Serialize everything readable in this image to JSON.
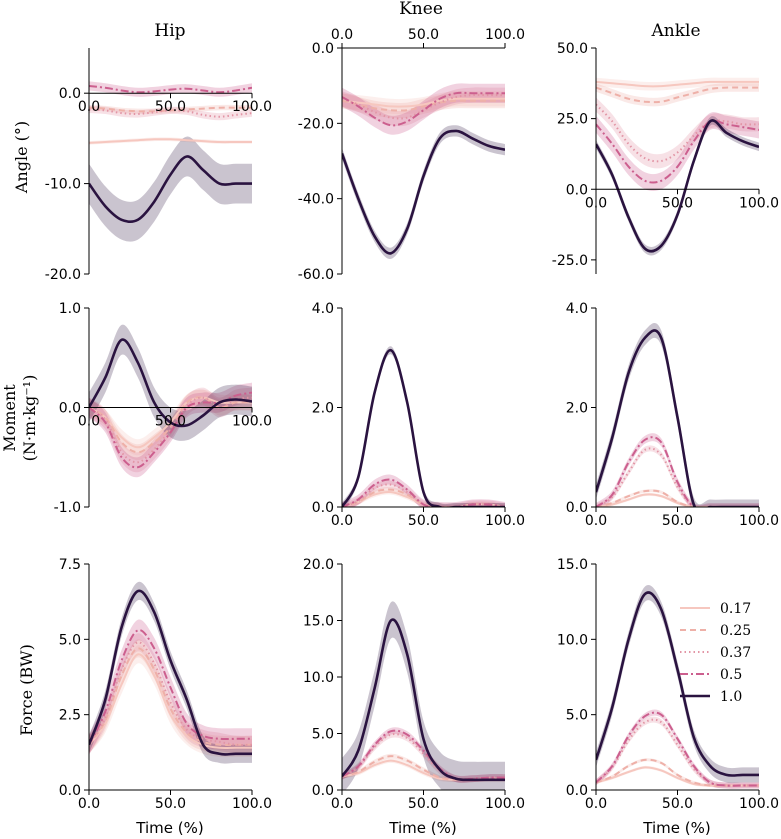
{
  "figure": {
    "col_titles": [
      "Hip",
      "Knee",
      "Ankle"
    ],
    "row_ylabels": [
      "Angle (°)",
      "Moment",
      "(N·m·kg⁻¹)",
      "Force (BW)"
    ],
    "xlabel": "Time (%)"
  },
  "legend": [
    {
      "label": "0.17",
      "color": "#f6c7bf",
      "dash": "solid"
    },
    {
      "label": "0.25",
      "color": "#eeb0a8",
      "dash": "dashed"
    },
    {
      "label": "0.37",
      "color": "#e295a5",
      "dash": "dotted"
    },
    {
      "label": "0.5",
      "color": "#cc5f8e",
      "dash": "dashdot"
    },
    {
      "label": "1.0",
      "color": "#2a1340",
      "dash": "solid"
    }
  ],
  "chart_data": [
    {
      "type": "line",
      "title": "Hip",
      "ylabel": "Angle (°)",
      "xlabel": "",
      "xlim": [
        0,
        100
      ],
      "ylim": [
        -20,
        5
      ],
      "xticks": [
        0,
        50,
        100
      ],
      "xtick_labels": [
        "0.0",
        "50.0",
        "100.0"
      ],
      "yticks": [
        0,
        -10,
        -20
      ],
      "ytick_labels": [
        "0.0",
        "-10.0",
        "-20.0"
      ],
      "x": [
        0,
        10,
        20,
        30,
        40,
        50,
        60,
        70,
        80,
        90,
        100
      ],
      "series": [
        {
          "name": "0.17",
          "values": [
            -5.5,
            -5.4,
            -5.3,
            -5.2,
            -5.1,
            -5.1,
            -5.2,
            -5.3,
            -5.4,
            -5.4,
            -5.4
          ],
          "band": 0.2
        },
        {
          "name": "0.25",
          "values": [
            -1.6,
            -1.7,
            -1.9,
            -2.0,
            -2.0,
            -1.9,
            -1.8,
            -1.7,
            -1.6,
            -1.6,
            -1.6
          ],
          "band": 0.3
        },
        {
          "name": "0.37",
          "values": [
            -1.8,
            -1.9,
            -2.2,
            -2.3,
            -2.1,
            -1.9,
            -2.0,
            -2.4,
            -2.6,
            -2.4,
            -2.2
          ],
          "band": 0.4
        },
        {
          "name": "0.5",
          "values": [
            0.8,
            0.6,
            0.3,
            0.1,
            0.2,
            0.4,
            0.5,
            0.3,
            0.1,
            0.3,
            0.6
          ],
          "band": 0.5
        },
        {
          "name": "1.0",
          "values": [
            -10.0,
            -12.5,
            -14.0,
            -14.0,
            -12.0,
            -9.0,
            -7.0,
            -8.5,
            -10.0,
            -10.0,
            -10.0
          ],
          "band": 2.2
        }
      ]
    },
    {
      "type": "line",
      "title": "Knee",
      "ylabel": "",
      "xlabel": "",
      "xlim": [
        0,
        100
      ],
      "ylim": [
        -60,
        0
      ],
      "xticks": [
        0,
        50,
        100
      ],
      "xtick_labels": [
        "0.0",
        "50.0",
        "100.0"
      ],
      "yticks": [
        0,
        -20,
        -40,
        -60
      ],
      "ytick_labels": [
        "0.0",
        "-20.0",
        "-40.0",
        "-60.0"
      ],
      "x": [
        0,
        10,
        20,
        30,
        40,
        50,
        60,
        70,
        80,
        90,
        100
      ],
      "series": [
        {
          "name": "0.17",
          "values": [
            -14,
            -14.5,
            -15,
            -15.5,
            -15.5,
            -15,
            -14,
            -13.5,
            -13.5,
            -13.5,
            -13.5
          ],
          "band": 2.0
        },
        {
          "name": "0.25",
          "values": [
            -14,
            -15,
            -16,
            -16.5,
            -16.5,
            -15.5,
            -14.5,
            -14,
            -14,
            -14,
            -14
          ],
          "band": 2.0
        },
        {
          "name": "0.37",
          "values": [
            -13.5,
            -15,
            -17,
            -18.5,
            -18.5,
            -16.5,
            -14.5,
            -13,
            -12.5,
            -12.5,
            -12.5
          ],
          "band": 2.0
        },
        {
          "name": "0.5",
          "values": [
            -13,
            -15.5,
            -18.5,
            -20.5,
            -19.5,
            -16.5,
            -13.5,
            -12,
            -12,
            -12,
            -12
          ],
          "band": 2.5
        },
        {
          "name": "1.0",
          "values": [
            -28,
            -40,
            -50,
            -54.5,
            -48,
            -34,
            -24,
            -22,
            -24,
            -26,
            -27
          ],
          "band": 1.5
        }
      ]
    },
    {
      "type": "line",
      "title": "Ankle",
      "ylabel": "",
      "xlabel": "",
      "xlim": [
        0,
        100
      ],
      "ylim": [
        -30,
        50
      ],
      "xticks": [
        0,
        50,
        100
      ],
      "xtick_labels": [
        "0.0",
        "50.0",
        "100.0"
      ],
      "yticks": [
        50,
        25,
        0,
        -25
      ],
      "ytick_labels": [
        "50.0",
        "25.0",
        "0.0",
        "-25.0"
      ],
      "x": [
        0,
        10,
        20,
        30,
        40,
        50,
        60,
        70,
        80,
        90,
        100
      ],
      "series": [
        {
          "name": "0.17",
          "values": [
            38,
            37.5,
            37,
            36.5,
            36.5,
            37,
            37.5,
            38,
            38,
            38,
            38
          ],
          "band": 1.5
        },
        {
          "name": "0.25",
          "values": [
            36,
            34,
            32,
            31,
            31,
            32.5,
            34,
            35.5,
            36,
            36,
            36
          ],
          "band": 1.5
        },
        {
          "name": "0.37",
          "values": [
            30,
            24,
            16,
            11,
            10,
            13,
            19,
            24,
            24,
            23,
            23
          ],
          "band": 2.5
        },
        {
          "name": "0.5",
          "values": [
            23,
            16,
            8,
            3,
            3,
            8,
            17,
            24,
            23,
            22,
            21
          ],
          "band": 3.0
        },
        {
          "name": "1.0",
          "values": [
            16,
            5,
            -10,
            -21,
            -20,
            -9,
            10,
            24,
            20,
            17,
            15
          ],
          "band": 1.5
        }
      ]
    },
    {
      "type": "line",
      "title": "",
      "ylabel": "Moment (N·m·kg⁻¹)",
      "xlabel": "",
      "xlim": [
        0,
        100
      ],
      "ylim": [
        -1,
        1
      ],
      "xticks": [
        0,
        50,
        100
      ],
      "xtick_labels": [
        "0.0",
        "50.0",
        "100.0"
      ],
      "yticks": [
        1,
        0,
        -1
      ],
      "ytick_labels": [
        "1.0",
        "0.0",
        "-1.0"
      ],
      "x": [
        0,
        10,
        20,
        30,
        40,
        50,
        60,
        70,
        80,
        90,
        100
      ],
      "series": [
        {
          "name": "0.17",
          "values": [
            0,
            -0.1,
            -0.3,
            -0.4,
            -0.3,
            -0.15,
            0.05,
            0.1,
            0.05,
            0.05,
            0.05
          ],
          "band": 0.08
        },
        {
          "name": "0.25",
          "values": [
            0,
            -0.1,
            -0.35,
            -0.45,
            -0.35,
            -0.2,
            0.05,
            0.1,
            0.0,
            0.05,
            0.05
          ],
          "band": 0.08
        },
        {
          "name": "0.37",
          "values": [
            0,
            -0.12,
            -0.45,
            -0.55,
            -0.42,
            -0.22,
            0.02,
            0.1,
            0.0,
            0.08,
            0.1
          ],
          "band": 0.1
        },
        {
          "name": "0.5",
          "values": [
            0,
            -0.15,
            -0.5,
            -0.6,
            -0.45,
            -0.25,
            0.0,
            0.05,
            0.05,
            0.12,
            0.15
          ],
          "band": 0.1
        },
        {
          "name": "1.0",
          "values": [
            0,
            0.3,
            0.68,
            0.45,
            0.05,
            -0.15,
            -0.18,
            -0.08,
            0.05,
            0.08,
            0.06
          ],
          "band": 0.15
        }
      ]
    },
    {
      "type": "line",
      "title": "",
      "ylabel": "",
      "xlabel": "",
      "xlim": [
        0,
        100
      ],
      "ylim": [
        0,
        4
      ],
      "xticks": [
        0,
        50,
        100
      ],
      "xtick_labels": [
        "0.0",
        "50.0",
        "100.0"
      ],
      "yticks": [
        4,
        2,
        0
      ],
      "ytick_labels": [
        "4.0",
        "2.0",
        "0.0"
      ],
      "x": [
        0,
        10,
        20,
        30,
        40,
        50,
        60,
        70,
        80,
        90,
        100
      ],
      "series": [
        {
          "name": "0.17",
          "values": [
            0,
            0.1,
            0.25,
            0.3,
            0.2,
            0.05,
            0.0,
            0.0,
            0.05,
            0.05,
            0.0
          ],
          "band": 0.05
        },
        {
          "name": "0.25",
          "values": [
            0,
            0.1,
            0.3,
            0.35,
            0.25,
            0.05,
            0.0,
            0.0,
            0.05,
            0.05,
            0.0
          ],
          "band": 0.05
        },
        {
          "name": "0.37",
          "values": [
            0,
            0.12,
            0.38,
            0.45,
            0.3,
            0.05,
            0.0,
            0.0,
            0.05,
            0.05,
            0.0
          ],
          "band": 0.08
        },
        {
          "name": "0.5",
          "values": [
            0,
            0.15,
            0.45,
            0.55,
            0.35,
            0.05,
            0.0,
            0.0,
            0.05,
            0.05,
            0.0
          ],
          "band": 0.1
        },
        {
          "name": "1.0",
          "values": [
            0,
            0.6,
            2.3,
            3.15,
            2.1,
            0.3,
            0.0,
            0.0,
            0.0,
            0.0,
            0.0
          ],
          "band": 0.08
        }
      ]
    },
    {
      "type": "line",
      "title": "",
      "ylabel": "",
      "xlabel": "",
      "xlim": [
        0,
        100
      ],
      "ylim": [
        0,
        4
      ],
      "xticks": [
        0,
        50,
        100
      ],
      "xtick_labels": [
        "0.0",
        "50.0",
        "100.0"
      ],
      "yticks": [
        4,
        2,
        0
      ],
      "ytick_labels": [
        "4.0",
        "2.0",
        "0.0"
      ],
      "x": [
        0,
        10,
        20,
        30,
        40,
        50,
        60,
        70,
        80,
        90,
        100
      ],
      "series": [
        {
          "name": "0.17",
          "values": [
            0,
            0.05,
            0.15,
            0.25,
            0.22,
            0.08,
            0.0,
            0.0,
            0.0,
            0.0,
            0.0
          ],
          "band": 0.03
        },
        {
          "name": "0.25",
          "values": [
            0,
            0.08,
            0.22,
            0.32,
            0.3,
            0.1,
            0.0,
            0.0,
            0.0,
            0.0,
            0.0
          ],
          "band": 0.03
        },
        {
          "name": "0.37",
          "values": [
            0,
            0.2,
            0.7,
            1.15,
            1.05,
            0.4,
            0.0,
            0.0,
            0.0,
            0.0,
            0.0
          ],
          "band": 0.06
        },
        {
          "name": "0.5",
          "values": [
            0,
            0.25,
            0.9,
            1.35,
            1.3,
            0.5,
            0.0,
            0.0,
            0.0,
            0.0,
            0.0
          ],
          "band": 0.08
        },
        {
          "name": "1.0",
          "values": [
            0.3,
            1.4,
            2.7,
            3.4,
            3.4,
            1.8,
            0.05,
            0.0,
            0.0,
            0.0,
            0.0
          ],
          "band": 0.15
        }
      ]
    },
    {
      "type": "line",
      "title": "",
      "ylabel": "Force (BW)",
      "xlabel": "Time (%)",
      "xlim": [
        0,
        100
      ],
      "ylim": [
        0,
        7.5
      ],
      "xticks": [
        0,
        50,
        100
      ],
      "xtick_labels": [
        "0.0",
        "50.0",
        "100.0"
      ],
      "yticks": [
        7.5,
        5,
        2.5,
        0
      ],
      "ytick_labels": [
        "7.5",
        "5.0",
        "2.5",
        "0.0"
      ],
      "x": [
        0,
        10,
        20,
        30,
        40,
        50,
        60,
        70,
        80,
        90,
        100
      ],
      "series": [
        {
          "name": "0.17",
          "values": [
            1.5,
            2.2,
            3.5,
            4.5,
            3.8,
            2.5,
            1.8,
            1.5,
            1.4,
            1.4,
            1.4
          ],
          "band": 0.3
        },
        {
          "name": "0.25",
          "values": [
            1.5,
            2.3,
            3.8,
            4.7,
            4.0,
            2.7,
            1.9,
            1.6,
            1.5,
            1.5,
            1.5
          ],
          "band": 0.3
        },
        {
          "name": "0.37",
          "values": [
            1.5,
            2.4,
            4.0,
            4.9,
            4.2,
            2.9,
            2.0,
            1.7,
            1.6,
            1.5,
            1.5
          ],
          "band": 0.3
        },
        {
          "name": "0.5",
          "values": [
            1.5,
            2.6,
            4.3,
            5.3,
            4.7,
            3.4,
            2.2,
            1.8,
            1.7,
            1.7,
            1.7
          ],
          "band": 0.35
        },
        {
          "name": "1.0",
          "values": [
            1.5,
            3.0,
            5.4,
            6.6,
            5.9,
            4.3,
            3.0,
            1.5,
            1.2,
            1.2,
            1.2
          ],
          "band": 0.3
        }
      ]
    },
    {
      "type": "line",
      "title": "",
      "ylabel": "",
      "xlabel": "Time (%)",
      "xlim": [
        0,
        100
      ],
      "ylim": [
        0,
        20
      ],
      "xticks": [
        0,
        50,
        100
      ],
      "xtick_labels": [
        "0.0",
        "50.0",
        "100.0"
      ],
      "yticks": [
        20,
        15,
        10,
        5,
        0
      ],
      "ytick_labels": [
        "20.0",
        "15.0",
        "10.0",
        "5.0",
        "0.0"
      ],
      "x": [
        0,
        10,
        20,
        30,
        40,
        50,
        60,
        70,
        80,
        90,
        100
      ],
      "series": [
        {
          "name": "0.17",
          "values": [
            1.2,
            1.5,
            2.2,
            2.6,
            2.2,
            1.5,
            1.0,
            0.9,
            0.9,
            0.9,
            0.9
          ],
          "band": 0.2
        },
        {
          "name": "0.25",
          "values": [
            1.2,
            1.6,
            2.5,
            3.0,
            2.6,
            1.8,
            1.1,
            0.9,
            0.9,
            1.0,
            1.0
          ],
          "band": 0.2
        },
        {
          "name": "0.37",
          "values": [
            1.2,
            2.0,
            3.8,
            4.9,
            4.6,
            3.2,
            1.7,
            1.0,
            1.0,
            1.1,
            1.1
          ],
          "band": 0.3
        },
        {
          "name": "0.5",
          "values": [
            1.2,
            2.1,
            4.0,
            5.2,
            4.9,
            3.5,
            1.9,
            1.0,
            1.0,
            1.1,
            1.1
          ],
          "band": 0.3
        },
        {
          "name": "1.0",
          "values": [
            1.2,
            3.5,
            9.0,
            15.0,
            12.0,
            4.5,
            1.8,
            1.0,
            0.9,
            0.9,
            0.9
          ],
          "band": 1.6
        }
      ]
    },
    {
      "type": "line",
      "title": "",
      "ylabel": "",
      "xlabel": "Time (%)",
      "xlim": [
        0,
        100
      ],
      "ylim": [
        0,
        15
      ],
      "xticks": [
        0,
        50,
        100
      ],
      "xtick_labels": [
        "0.0",
        "50.0",
        "100.0"
      ],
      "yticks": [
        15,
        10,
        5,
        0
      ],
      "ytick_labels": [
        "15.0",
        "10.0",
        "5.0",
        "0.0"
      ],
      "x": [
        0,
        10,
        20,
        30,
        40,
        50,
        60,
        70,
        80,
        90,
        100
      ],
      "series": [
        {
          "name": "0.17",
          "values": [
            0.5,
            0.8,
            1.2,
            1.5,
            1.3,
            0.8,
            0.4,
            0.3,
            0.3,
            0.3,
            0.3
          ],
          "band": 0.1
        },
        {
          "name": "0.25",
          "values": [
            0.5,
            0.9,
            1.6,
            2.0,
            1.8,
            1.0,
            0.5,
            0.3,
            0.3,
            0.3,
            0.3
          ],
          "band": 0.1
        },
        {
          "name": "0.37",
          "values": [
            0.5,
            1.5,
            3.3,
            4.5,
            4.5,
            3.0,
            1.4,
            0.5,
            0.3,
            0.3,
            0.3
          ],
          "band": 0.2
        },
        {
          "name": "0.5",
          "values": [
            0.5,
            1.6,
            3.6,
            4.9,
            5.0,
            3.4,
            1.6,
            0.5,
            0.3,
            0.3,
            0.3
          ],
          "band": 0.2
        },
        {
          "name": "1.0",
          "values": [
            2.0,
            5.5,
            10.0,
            13.0,
            12.0,
            8.0,
            3.5,
            1.6,
            1.0,
            1.0,
            1.0
          ],
          "band": 0.5
        }
      ]
    }
  ]
}
